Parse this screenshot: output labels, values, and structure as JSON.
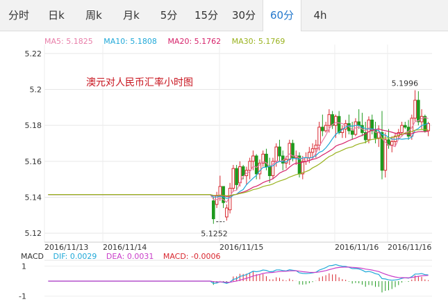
{
  "tabs": [
    {
      "label": "分时"
    },
    {
      "label": "日k"
    },
    {
      "label": "周k"
    },
    {
      "label": "月k"
    },
    {
      "label": "5分"
    },
    {
      "label": "15分"
    },
    {
      "label": "30分"
    },
    {
      "label": "60分",
      "active": true
    },
    {
      "label": "4h"
    }
  ],
  "ma_legend": {
    "ma5": "MA5: 5.1825",
    "ma10": "MA10: 5.1808",
    "ma20": "MA20: 5.1762",
    "ma30": "MA30: 5.1769"
  },
  "colors": {
    "ma5": "#e87da8",
    "ma10": "#1fa8d8",
    "ma20": "#d6226a",
    "ma30": "#99b21d",
    "up": "#d8262e",
    "down": "#1e9a1e",
    "tab_active": "#2277cc"
  },
  "chart_data": [
    {
      "type": "candlestick",
      "title": "澳元对人民币汇率小时图",
      "ylim": [
        5.115,
        5.225
      ],
      "y_ticks": [
        "5.22",
        "5.2",
        "5.18",
        "5.16",
        "5.14",
        "5.12"
      ],
      "x_tick_labels": [
        "2016/11/13",
        "2016/11/14",
        "2016/11/15",
        "2016/11/16",
        "2016/11/16"
      ],
      "annotations": {
        "high": "5.1996",
        "low": "5.1252"
      },
      "candles": [
        [
          5.1415,
          5.1415,
          5.1415,
          5.1415
        ],
        [
          5.1415,
          5.1415,
          5.1415,
          5.1415
        ],
        [
          5.1415,
          5.1415,
          5.1415,
          5.1415
        ],
        [
          5.1415,
          5.1415,
          5.1415,
          5.1415
        ],
        [
          5.1415,
          5.1415,
          5.1415,
          5.1415
        ],
        [
          5.1415,
          5.1415,
          5.1415,
          5.1415
        ],
        [
          5.1415,
          5.1415,
          5.1415,
          5.1415
        ],
        [
          5.1415,
          5.1415,
          5.1415,
          5.1415
        ],
        [
          5.1415,
          5.1415,
          5.1415,
          5.1415
        ],
        [
          5.1415,
          5.1415,
          5.1415,
          5.1415
        ],
        [
          5.1415,
          5.1415,
          5.1415,
          5.1415
        ],
        [
          5.1415,
          5.1415,
          5.1415,
          5.1415
        ],
        [
          5.1415,
          5.1415,
          5.1415,
          5.1415
        ],
        [
          5.1415,
          5.1415,
          5.1415,
          5.1415
        ],
        [
          5.1415,
          5.1415,
          5.1415,
          5.1415
        ],
        [
          5.1415,
          5.1415,
          5.1415,
          5.1415
        ],
        [
          5.1415,
          5.1415,
          5.1415,
          5.1415
        ],
        [
          5.1415,
          5.1415,
          5.1415,
          5.1415
        ],
        [
          5.1415,
          5.1415,
          5.1415,
          5.1415
        ],
        [
          5.1415,
          5.1415,
          5.1415,
          5.1415
        ],
        [
          5.1415,
          5.1415,
          5.1415,
          5.1415
        ],
        [
          5.1415,
          5.1415,
          5.1415,
          5.1415
        ],
        [
          5.1415,
          5.1415,
          5.1415,
          5.1415
        ],
        [
          5.1415,
          5.1415,
          5.1415,
          5.1415
        ],
        [
          5.1415,
          5.1415,
          5.1415,
          5.1415
        ],
        [
          5.1415,
          5.1415,
          5.1415,
          5.1415
        ],
        [
          5.1415,
          5.1415,
          5.1415,
          5.1415
        ],
        [
          5.1415,
          5.1415,
          5.1415,
          5.1415
        ],
        [
          5.1415,
          5.1415,
          5.1415,
          5.1415
        ],
        [
          5.1415,
          5.1415,
          5.1415,
          5.1415
        ],
        [
          5.1415,
          5.1415,
          5.1415,
          5.1415
        ],
        [
          5.1415,
          5.1415,
          5.1415,
          5.1415
        ],
        [
          5.1415,
          5.1415,
          5.1415,
          5.1415
        ],
        [
          5.1415,
          5.1415,
          5.1415,
          5.1415
        ],
        [
          5.1415,
          5.1415,
          5.1415,
          5.1415
        ],
        [
          5.1415,
          5.1415,
          5.1415,
          5.1415
        ],
        [
          5.1415,
          5.1415,
          5.1415,
          5.1415
        ],
        [
          5.1415,
          5.1415,
          5.1415,
          5.1415
        ],
        [
          5.1415,
          5.1415,
          5.1415,
          5.1415
        ],
        [
          5.1415,
          5.1415,
          5.1415,
          5.1415
        ],
        [
          5.1415,
          5.1415,
          5.1415,
          5.1415
        ],
        [
          5.1415,
          5.1415,
          5.1415,
          5.1415
        ],
        [
          5.1415,
          5.1415,
          5.1415,
          5.1415
        ],
        [
          5.1415,
          5.1415,
          5.1415,
          5.1415
        ],
        [
          5.1415,
          5.1415,
          5.1415,
          5.1415
        ],
        [
          5.1415,
          5.1415,
          5.1415,
          5.1415
        ],
        [
          5.1415,
          5.1415,
          5.1415,
          5.1415
        ],
        [
          5.1415,
          5.1415,
          5.1415,
          5.1415
        ],
        [
          5.1415,
          5.1415,
          5.1415,
          5.1415
        ],
        [
          5.1415,
          5.1415,
          5.1415,
          5.1415
        ],
        [
          5.138,
          5.14,
          5.1252,
          5.128
        ],
        [
          5.136,
          5.143,
          5.134,
          5.141
        ],
        [
          5.141,
          5.152,
          5.138,
          5.146
        ],
        [
          5.146,
          5.146,
          5.134,
          5.137
        ],
        [
          5.129,
          5.136,
          5.127,
          5.134
        ],
        [
          5.133,
          5.148,
          5.131,
          5.145
        ],
        [
          5.145,
          5.158,
          5.143,
          5.156
        ],
        [
          5.156,
          5.158,
          5.144,
          5.147
        ],
        [
          5.148,
          5.16,
          5.146,
          5.157
        ],
        [
          5.157,
          5.158,
          5.15,
          5.152
        ],
        [
          5.152,
          5.157,
          5.147,
          5.155
        ],
        [
          5.155,
          5.162,
          5.15,
          5.16
        ],
        [
          5.16,
          5.166,
          5.155,
          5.163
        ],
        [
          5.163,
          5.164,
          5.15,
          5.153
        ],
        [
          5.153,
          5.161,
          5.15,
          5.159
        ],
        [
          5.159,
          5.166,
          5.157,
          5.164
        ],
        [
          5.164,
          5.167,
          5.155,
          5.157
        ],
        [
          5.157,
          5.162,
          5.148,
          5.152
        ],
        [
          5.152,
          5.162,
          5.15,
          5.16
        ],
        [
          5.16,
          5.17,
          5.157,
          5.168
        ],
        [
          5.168,
          5.172,
          5.16,
          5.163
        ],
        [
          5.163,
          5.166,
          5.155,
          5.159
        ],
        [
          5.159,
          5.163,
          5.156,
          5.161
        ],
        [
          5.161,
          5.172,
          5.158,
          5.17
        ],
        [
          5.17,
          5.172,
          5.16,
          5.162
        ],
        [
          5.162,
          5.166,
          5.158,
          5.163
        ],
        [
          5.163,
          5.165,
          5.151,
          5.153
        ],
        [
          5.153,
          5.163,
          5.15,
          5.16
        ],
        [
          5.16,
          5.165,
          5.158,
          5.162
        ],
        [
          5.162,
          5.168,
          5.159,
          5.165
        ],
        [
          5.165,
          5.17,
          5.161,
          5.167
        ],
        [
          5.167,
          5.172,
          5.162,
          5.169
        ],
        [
          5.169,
          5.182,
          5.166,
          5.179
        ],
        [
          5.179,
          5.186,
          5.174,
          5.177
        ],
        [
          5.177,
          5.182,
          5.176,
          5.18
        ],
        [
          5.18,
          5.189,
          5.176,
          5.186
        ],
        [
          5.186,
          5.188,
          5.178,
          5.18
        ],
        [
          5.18,
          5.186,
          5.173,
          5.185
        ],
        [
          5.185,
          5.188,
          5.175,
          5.176
        ],
        [
          5.176,
          5.18,
          5.173,
          5.178
        ],
        [
          5.178,
          5.183,
          5.173,
          5.181
        ],
        [
          5.181,
          5.186,
          5.175,
          5.177
        ],
        [
          5.177,
          5.182,
          5.172,
          5.175
        ],
        [
          5.175,
          5.184,
          5.174,
          5.182
        ],
        [
          5.182,
          5.189,
          5.178,
          5.18
        ],
        [
          5.18,
          5.187,
          5.174,
          5.176
        ],
        [
          5.176,
          5.182,
          5.17,
          5.172
        ],
        [
          5.172,
          5.185,
          5.17,
          5.183
        ],
        [
          5.183,
          5.186,
          5.175,
          5.177
        ],
        [
          5.177,
          5.182,
          5.17,
          5.173
        ],
        [
          5.173,
          5.18,
          5.168,
          5.176
        ],
        [
          5.176,
          5.188,
          5.15,
          5.155
        ],
        [
          5.155,
          5.176,
          5.151,
          5.172
        ],
        [
          5.172,
          5.178,
          5.167,
          5.169
        ],
        [
          5.169,
          5.174,
          5.165,
          5.171
        ],
        [
          5.171,
          5.176,
          5.168,
          5.174
        ],
        [
          5.174,
          5.178,
          5.172,
          5.176
        ],
        [
          5.176,
          5.182,
          5.174,
          5.18
        ],
        [
          5.18,
          5.182,
          5.178,
          5.179
        ],
        [
          5.179,
          5.183,
          5.172,
          5.174
        ],
        [
          5.174,
          5.186,
          5.172,
          5.184
        ],
        [
          5.184,
          5.1996,
          5.182,
          5.194
        ],
        [
          5.194,
          5.199,
          5.18,
          5.182
        ],
        [
          5.182,
          5.189,
          5.178,
          5.185
        ],
        [
          5.185,
          5.186,
          5.176,
          5.177
        ],
        [
          5.177,
          5.182,
          5.174,
          5.181
        ]
      ]
    },
    {
      "type": "macd",
      "title": "MACD",
      "dif": "DIF: 0.0029",
      "dea": "DEA: 0.0031",
      "macd": "MACD: -0.0006",
      "ylim": [
        -1.2,
        1.2
      ],
      "y_ticks": [
        "1",
        "-1"
      ]
    }
  ]
}
